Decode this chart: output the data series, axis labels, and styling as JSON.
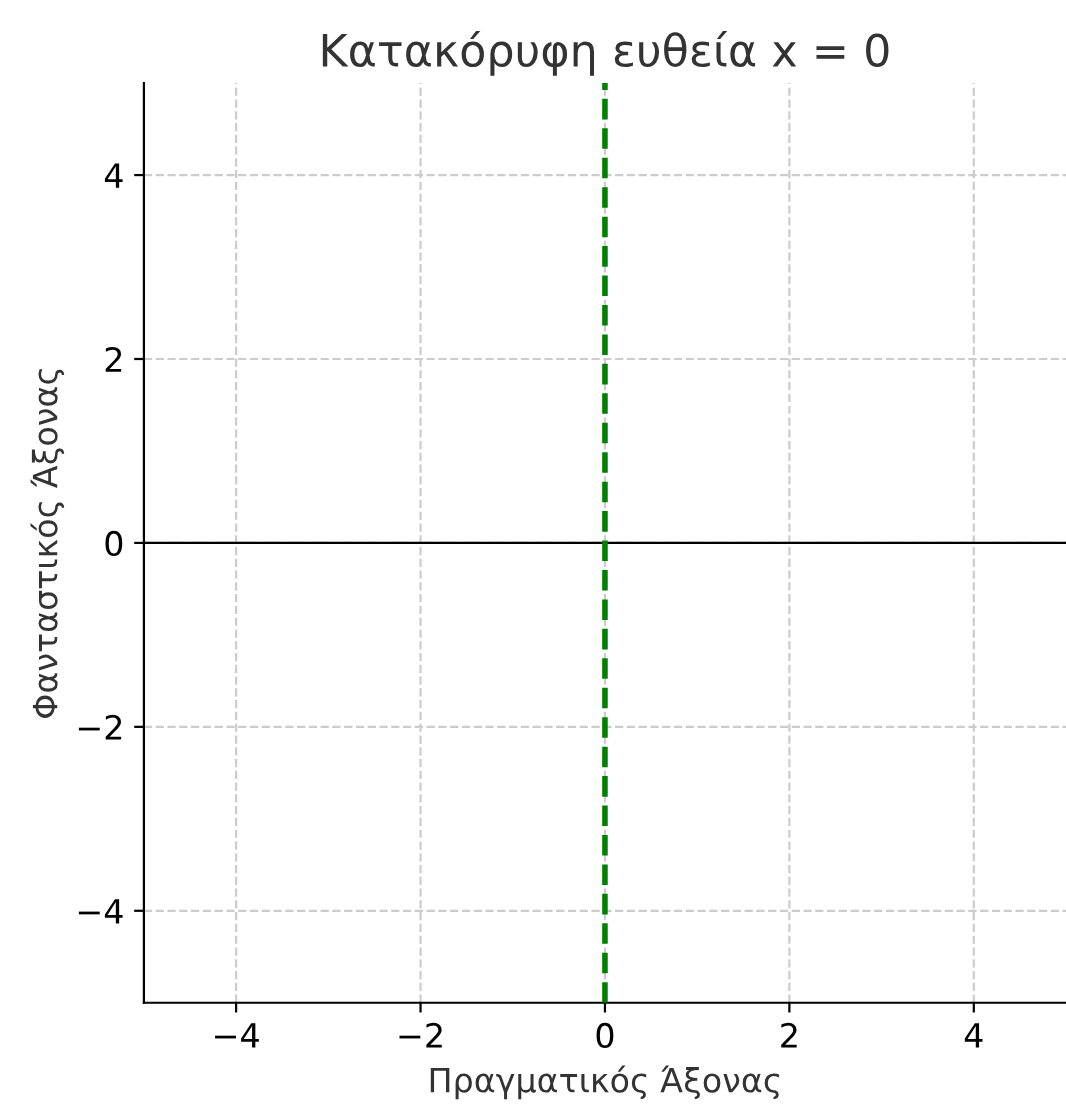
{
  "chart_data": {
    "type": "line",
    "title": "Κατακόρυφη ευθεία x = 0",
    "xlabel": "Πραγματικός Άξονας",
    "ylabel": "Φανταστικός Άξονας",
    "series": [
      {
        "x": [
          0,
          0
        ],
        "values": [
          -5,
          5
        ],
        "color": "#008000",
        "line_style": "dashed"
      }
    ],
    "ref_lines": [
      {
        "axis": "y",
        "value": 0,
        "color": "#000000",
        "line_style": "solid"
      }
    ],
    "xlim": [
      -5,
      5
    ],
    "ylim": [
      -5,
      5
    ],
    "xticks": [
      -4,
      -2,
      0,
      2,
      4
    ],
    "yticks": [
      -4,
      -2,
      0,
      2,
      4
    ],
    "grid": true,
    "marker": "none"
  }
}
